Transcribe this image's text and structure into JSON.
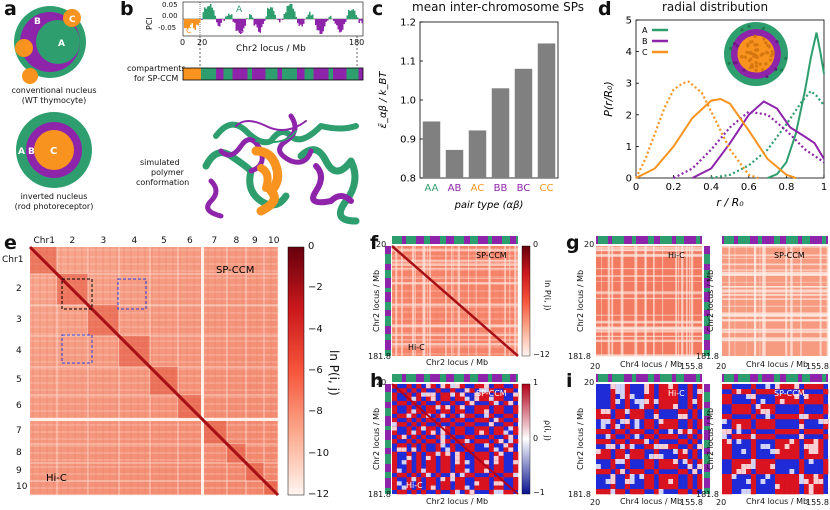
{
  "panels": {
    "a": {
      "label": "a",
      "top": {
        "caption1": "conventional nucleus",
        "caption2": "(WT thymocyte)",
        "A": "A",
        "B": "B",
        "C": "C"
      },
      "bottom": {
        "caption1": "inverted nucleus",
        "caption2": "(rod photoreceptor)",
        "A": "A",
        "B": "B",
        "C": "C"
      },
      "colors": {
        "A": "#2e9e6e",
        "B": "#8e24aa",
        "C": "#f7931e"
      }
    },
    "b": {
      "label": "b",
      "pci_label": "PCI",
      "yticks": [
        "0.05",
        "0.00",
        "-0.05"
      ],
      "xticks": [
        "0",
        "20",
        "180"
      ],
      "xlabel": "Chr2 locus / Mb",
      "A": "A",
      "B": "B",
      "C": "C",
      "compartments1": "compartments",
      "compartments2": "for SP-CCM",
      "sim1": "simulated",
      "sim2": "polymer",
      "sim3": "conformation"
    },
    "f": {
      "label": "f",
      "tag_top": "SP-CCM",
      "tag_bot": "Hi-C",
      "cb_top": "0",
      "cb_bot": "−12",
      "cb_label": "ln P(i, j)",
      "t20": "20",
      "t181": "181.8",
      "xlabel": "Chr2 locus / Mb",
      "ylabel": "Chr2 locus / Mb"
    },
    "g": {
      "label": "g",
      "tag_left": "Hi-C",
      "tag_right": "SP-CCM",
      "t20a": "20",
      "t20b": "20",
      "t181a": "181.8",
      "t181b": "181.8",
      "t155a": "155.8",
      "t155b": "155.8",
      "xlabel": "Chr4 locus / Mb",
      "ylabel": "Chr2 locus / Mb"
    },
    "h": {
      "label": "h",
      "tag_top": "SP-CCM",
      "tag_bot": "Hi-C",
      "cb_top": "1",
      "cb_mid": "0",
      "cb_bot": "−1",
      "cb_label": "ρ(i, j)",
      "t20": "20",
      "t181": "181.8",
      "xlabel": "Chr2 locus / Mb",
      "ylabel": "Chr2 locus / Mb"
    },
    "i": {
      "label": "i",
      "tag_left": "Hi-C",
      "tag_right": "SP-CCM",
      "t20a": "20",
      "t20b": "20",
      "t181a": "181.8",
      "t181b": "181.8",
      "t155a": "155.8",
      "t155b": "155.8",
      "xlabel": "Chr4 locus / Mb",
      "ylabel": "Chr2 locus / Mb"
    },
    "e": {
      "label": "e",
      "chr_top": [
        "Chr1",
        "2",
        "3",
        "4",
        "5",
        "6",
        "7",
        "8",
        "9",
        "10"
      ],
      "chr_left": [
        "Chr1",
        "2",
        "3",
        "4",
        "5",
        "6",
        "7",
        "8",
        "9",
        "10"
      ],
      "tag_top": "SP-CCM",
      "tag_bot": "Hi-C",
      "cb_ticks": [
        "0",
        "−2",
        "−4",
        "−6",
        "−8",
        "−10",
        "−12"
      ],
      "cb_label": "ln P(i, j)"
    }
  },
  "chart_data": [
    {
      "id": "c",
      "type": "bar",
      "label": "c",
      "title": "mean inter-chromosome SPs",
      "categories": [
        "AA",
        "AB",
        "AC",
        "BB",
        "BC",
        "CC"
      ],
      "category_colors": [
        "#2e9e6e",
        "#8e24aa",
        "#f7931e",
        "#8e24aa",
        "#8e24aa",
        "#f7931e"
      ],
      "values": [
        0.945,
        0.872,
        0.922,
        1.03,
        1.08,
        1.145
      ],
      "ylim": [
        0.8,
        1.2
      ],
      "yticks": [
        "0.8",
        "0.9",
        "1.0",
        "1.1",
        "1.2"
      ],
      "xlabel": "pair type (αβ)",
      "ylabel": "ε̄_αβ / k_BT",
      "bar_color": "#808080"
    },
    {
      "id": "d",
      "type": "line",
      "label": "d",
      "title": "radial distribution",
      "xlabel": "r / R₀",
      "ylabel": "P(r/R₀)",
      "xlim": [
        0,
        1
      ],
      "ylim": [
        0,
        5
      ],
      "xticks": [
        "0",
        "0.2",
        "0.4",
        "0.6",
        "0.8",
        "1"
      ],
      "yticks": [
        "0",
        "1",
        "2",
        "3",
        "4",
        "5"
      ],
      "legend": [
        "A",
        "B",
        "C"
      ],
      "series": [
        {
          "name": "A solid",
          "color": "#2e9e6e",
          "dash": false,
          "x": [
            0.7,
            0.75,
            0.8,
            0.85,
            0.9,
            0.93,
            0.96,
            0.98,
            1.0
          ],
          "y": [
            0.0,
            0.12,
            0.5,
            1.4,
            2.8,
            3.8,
            4.6,
            4.0,
            3.3
          ]
        },
        {
          "name": "A dotted",
          "color": "#2e9e6e",
          "dash": true,
          "x": [
            0.4,
            0.5,
            0.6,
            0.7,
            0.8,
            0.88,
            0.93,
            0.96,
            1.0
          ],
          "y": [
            0.0,
            0.1,
            0.4,
            0.9,
            1.7,
            2.4,
            2.75,
            2.6,
            2.3
          ]
        },
        {
          "name": "B solid",
          "color": "#8e24aa",
          "dash": false,
          "x": [
            0.3,
            0.4,
            0.5,
            0.6,
            0.68,
            0.75,
            0.82,
            0.9,
            0.95,
            1.0
          ],
          "y": [
            0.0,
            0.3,
            1.1,
            2.0,
            2.42,
            2.2,
            1.6,
            1.3,
            1.1,
            0.6
          ]
        },
        {
          "name": "B dotted",
          "color": "#8e24aa",
          "dash": true,
          "x": [
            0.2,
            0.3,
            0.4,
            0.5,
            0.6,
            0.7,
            0.8,
            0.9,
            1.0
          ],
          "y": [
            0.0,
            0.3,
            0.9,
            1.6,
            2.1,
            2.0,
            1.5,
            0.9,
            0.5
          ]
        },
        {
          "name": "C solid",
          "color": "#f7931e",
          "dash": false,
          "x": [
            0.0,
            0.1,
            0.2,
            0.3,
            0.4,
            0.45,
            0.5,
            0.6,
            0.7,
            0.8,
            0.85
          ],
          "y": [
            0.0,
            0.3,
            1.0,
            1.9,
            2.45,
            2.5,
            2.35,
            1.5,
            0.6,
            0.1,
            0.0
          ]
        },
        {
          "name": "C dotted",
          "color": "#f7931e",
          "dash": true,
          "x": [
            0.0,
            0.05,
            0.1,
            0.15,
            0.2,
            0.25,
            0.28,
            0.35,
            0.4,
            0.5,
            0.6,
            0.65
          ],
          "y": [
            0.0,
            0.6,
            1.4,
            2.2,
            2.8,
            3.0,
            3.05,
            2.7,
            2.1,
            0.9,
            0.1,
            0.0
          ]
        }
      ]
    }
  ]
}
